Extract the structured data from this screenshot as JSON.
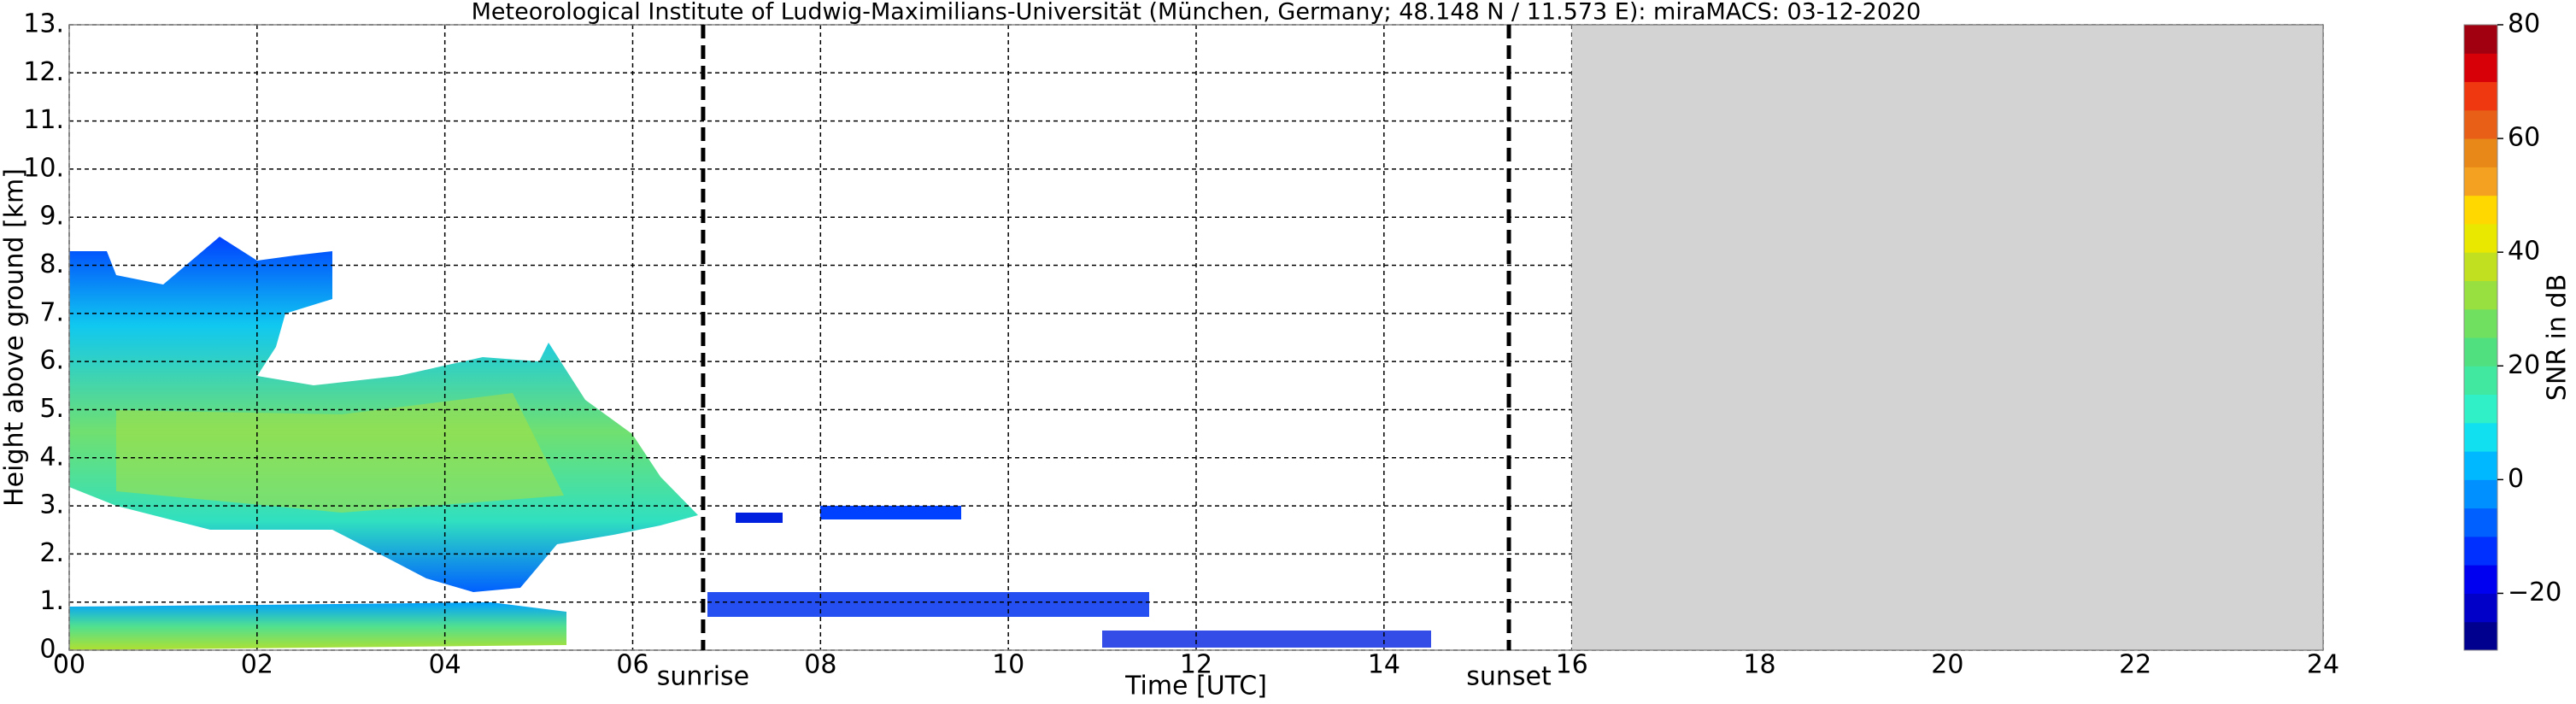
{
  "chart_data": {
    "type": "radar-timeheight",
    "title": "Meteorological Institute of Ludwig-Maximilians-Universität (München, Germany; 48.148 N / 11.573 E):    miraMACS: 03-12-2020",
    "x_label": "Time [UTC]",
    "y_label": "Height above ground [km]",
    "xlim": [
      0,
      24
    ],
    "ylim": [
      0,
      13
    ],
    "xticks": [
      {
        "value": 0,
        "label": "00"
      },
      {
        "value": 2,
        "label": "02"
      },
      {
        "value": 4,
        "label": "04"
      },
      {
        "value": 6,
        "label": "06"
      },
      {
        "value": 8,
        "label": "08"
      },
      {
        "value": 10,
        "label": "10"
      },
      {
        "value": 12,
        "label": "12"
      },
      {
        "value": 14,
        "label": "14"
      },
      {
        "value": 16,
        "label": "16"
      },
      {
        "value": 18,
        "label": "18"
      },
      {
        "value": 20,
        "label": "20"
      },
      {
        "value": 22,
        "label": "22"
      },
      {
        "value": 24,
        "label": "24"
      }
    ],
    "yticks": [
      {
        "value": 0,
        "label": "0."
      },
      {
        "value": 1,
        "label": "1."
      },
      {
        "value": 2,
        "label": "2."
      },
      {
        "value": 3,
        "label": "3."
      },
      {
        "value": 4,
        "label": "4."
      },
      {
        "value": 5,
        "label": "5."
      },
      {
        "value": 6,
        "label": "6."
      },
      {
        "value": 7,
        "label": "7."
      },
      {
        "value": 8,
        "label": "8."
      },
      {
        "value": 9,
        "label": "9."
      },
      {
        "value": 10,
        "label": "10."
      },
      {
        "value": 11,
        "label": "11."
      },
      {
        "value": 12,
        "label": "12."
      },
      {
        "value": 13,
        "label": "13."
      }
    ],
    "grid": true,
    "annotations": [
      {
        "text": "sunrise",
        "x": 6.75
      },
      {
        "text": "sunset",
        "x": 15.33
      }
    ],
    "shaded_span": [
      16,
      24
    ],
    "shade_color": "#d3d3d3",
    "colorbar": {
      "label": "SNR in dB",
      "levels": [
        -30,
        -25,
        -20,
        -15,
        -10,
        -5,
        0,
        5,
        10,
        15,
        20,
        25,
        30,
        35,
        40,
        45,
        50,
        55,
        60,
        65,
        70,
        75,
        80
      ],
      "colors": [
        "#00008f",
        "#0000c8",
        "#0000f0",
        "#0030ff",
        "#0060ff",
        "#0090ff",
        "#00b8ff",
        "#10e0f0",
        "#30f0c8",
        "#40e8a0",
        "#50e080",
        "#70e060",
        "#98e040",
        "#c0e020",
        "#e8e800",
        "#ffd800",
        "#f4a020",
        "#e88818",
        "#e86018",
        "#f03810",
        "#d80008",
        "#a00010"
      ],
      "ticks": [
        {
          "value": -20,
          "label": "−20"
        },
        0,
        20,
        40,
        60,
        80
      ]
    }
  }
}
